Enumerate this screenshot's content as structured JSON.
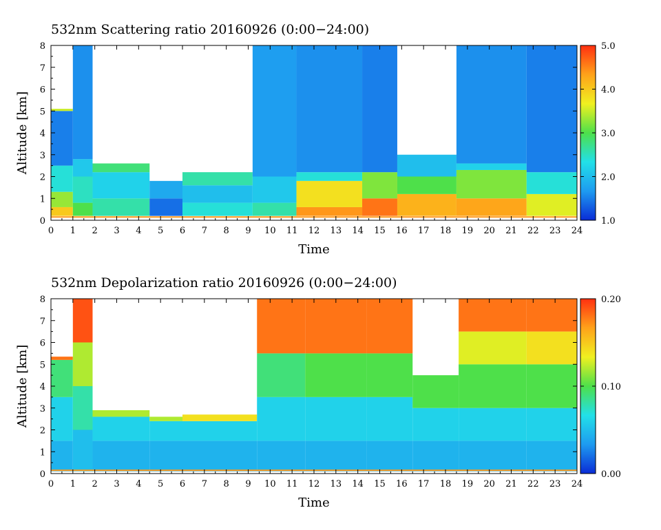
{
  "chart_data": [
    {
      "type": "heatmap",
      "title": "532nm Scattering ratio  20160926 (0:00−24:00)",
      "xlabel": "Time",
      "ylabel": "Altitude [km]",
      "xlim": [
        0,
        24
      ],
      "ylim": [
        0,
        8
      ],
      "x_ticks": [
        0,
        1,
        2,
        3,
        4,
        5,
        6,
        7,
        8,
        9,
        10,
        11,
        12,
        13,
        14,
        15,
        16,
        17,
        18,
        19,
        20,
        21,
        22,
        23,
        24
      ],
      "y_ticks": [
        0,
        1,
        2,
        3,
        4,
        5,
        6,
        7,
        8
      ],
      "colorbar": {
        "range": [
          1.0,
          5.0
        ],
        "ticks": [
          "1.0",
          "2.0",
          "3.0",
          "4.0",
          "5.0"
        ]
      },
      "colormap": [
        "#0a2cd6",
        "#1e9bf0",
        "#22e0e8",
        "#4ee04a",
        "#f0f020",
        "#ffa21a",
        "#ff3010"
      ],
      "no_data_color": "#ffffff",
      "notes_hidden": true,
      "regions": [
        {
          "t": [
            0.0,
            1.0
          ],
          "layers": [
            [
              0.2,
              0.6,
              4.0
            ],
            [
              0.6,
              1.3,
              3.3
            ],
            [
              1.3,
              2.5,
              2.4
            ],
            [
              2.5,
              5.0,
              1.5
            ],
            [
              5.0,
              5.1,
              3.5
            ]
          ],
          "top": 5.1
        },
        {
          "t": [
            1.0,
            1.9
          ],
          "layers": [
            [
              0.2,
              0.8,
              3.0
            ],
            [
              0.8,
              2.0,
              2.5
            ],
            [
              2.0,
              2.8,
              2.1
            ],
            [
              2.8,
              8.0,
              1.6
            ]
          ],
          "top": 8.0
        },
        {
          "t": [
            1.9,
            4.5
          ],
          "layers": [
            [
              0.2,
              1.0,
              2.6
            ],
            [
              1.0,
              2.2,
              2.2
            ],
            [
              2.2,
              2.6,
              2.8
            ]
          ],
          "top": 2.6
        },
        {
          "t": [
            4.5,
            6.0
          ],
          "layers": [
            [
              0.2,
              1.0,
              1.4
            ],
            [
              1.0,
              1.8,
              1.8
            ]
          ],
          "top": 1.8
        },
        {
          "t": [
            6.0,
            9.2
          ],
          "layers": [
            [
              0.2,
              0.8,
              2.4
            ],
            [
              0.8,
              1.6,
              2.0
            ],
            [
              1.6,
              2.2,
              2.6
            ]
          ],
          "top": 2.2
        },
        {
          "t": [
            9.2,
            11.2
          ],
          "layers": [
            [
              0.2,
              0.8,
              2.6
            ],
            [
              0.8,
              2.0,
              2.1
            ],
            [
              2.0,
              8.0,
              1.7
            ]
          ],
          "top": 8.0
        },
        {
          "t": [
            11.2,
            14.2
          ],
          "layers": [
            [
              0.2,
              0.6,
              4.4
            ],
            [
              0.6,
              1.8,
              3.8
            ],
            [
              1.8,
              2.2,
              2.4
            ],
            [
              2.2,
              8.0,
              1.6
            ]
          ],
          "top": 8.0
        },
        {
          "t": [
            14.2,
            15.8
          ],
          "layers": [
            [
              0.2,
              1.0,
              4.6
            ],
            [
              1.0,
              2.2,
              3.2
            ],
            [
              2.2,
              8.0,
              1.5
            ]
          ],
          "top": 8.0
        },
        {
          "t": [
            15.8,
            18.5
          ],
          "layers": [
            [
              0.2,
              1.2,
              4.2
            ],
            [
              1.2,
              2.0,
              3.0
            ],
            [
              2.0,
              3.0,
              2.0
            ]
          ],
          "top": 3.0
        },
        {
          "t": [
            18.5,
            21.7
          ],
          "layers": [
            [
              0.2,
              1.0,
              4.3
            ],
            [
              1.0,
              2.3,
              3.2
            ],
            [
              2.3,
              2.6,
              2.2
            ],
            [
              2.6,
              8.0,
              1.6
            ]
          ],
          "top": 8.0
        },
        {
          "t": [
            21.7,
            24.0
          ],
          "layers": [
            [
              0.2,
              1.2,
              3.6
            ],
            [
              1.2,
              2.2,
              2.4
            ],
            [
              2.2,
              8.0,
              1.5
            ]
          ],
          "top": 8.0
        }
      ]
    },
    {
      "type": "heatmap",
      "title": "532nm Depolarization ratio  20160926 (0:00−24:00)",
      "xlabel": "Time",
      "ylabel": "Altitude [km]",
      "xlim": [
        0,
        24
      ],
      "ylim": [
        0,
        8
      ],
      "x_ticks": [
        0,
        1,
        2,
        3,
        4,
        5,
        6,
        7,
        8,
        9,
        10,
        11,
        12,
        13,
        14,
        15,
        16,
        17,
        18,
        19,
        20,
        21,
        22,
        23,
        24
      ],
      "y_ticks": [
        0,
        1,
        2,
        3,
        4,
        5,
        6,
        7,
        8
      ],
      "colorbar": {
        "range": [
          0.0,
          0.2
        ],
        "ticks": [
          "0.00",
          "0.10",
          "0.20"
        ]
      },
      "colormap": [
        "#0a2cd6",
        "#1e9bf0",
        "#22e0e8",
        "#4ee04a",
        "#f0f020",
        "#ffa21a",
        "#ff3010"
      ],
      "no_data_color": "#ffffff",
      "regions": [
        {
          "t": [
            0.0,
            1.0
          ],
          "layers": [
            [
              0.1,
              1.5,
              0.045
            ],
            [
              1.5,
              3.5,
              0.06
            ],
            [
              3.5,
              5.2,
              0.09
            ],
            [
              5.2,
              5.35,
              0.18
            ]
          ],
          "top": 5.35
        },
        {
          "t": [
            1.0,
            1.9
          ],
          "layers": [
            [
              0.1,
              2.0,
              0.05
            ],
            [
              2.0,
              4.0,
              0.08
            ],
            [
              4.0,
              6.0,
              0.12
            ],
            [
              6.0,
              8.0,
              0.19
            ]
          ],
          "top": 8.0
        },
        {
          "t": [
            1.9,
            4.5
          ],
          "layers": [
            [
              0.1,
              1.5,
              0.045
            ],
            [
              1.5,
              2.6,
              0.06
            ],
            [
              2.6,
              2.9,
              0.12
            ]
          ],
          "top": 2.9
        },
        {
          "t": [
            4.5,
            6.0
          ],
          "layers": [
            [
              0.1,
              1.5,
              0.045
            ],
            [
              1.5,
              2.4,
              0.06
            ],
            [
              2.4,
              2.6,
              0.12
            ]
          ],
          "top": 2.6
        },
        {
          "t": [
            6.0,
            9.4
          ],
          "layers": [
            [
              0.1,
              1.5,
              0.045
            ],
            [
              1.5,
              2.4,
              0.06
            ],
            [
              2.4,
              2.7,
              0.14
            ]
          ],
          "top": 2.7
        },
        {
          "t": [
            9.4,
            11.6
          ],
          "layers": [
            [
              0.1,
              1.5,
              0.045
            ],
            [
              1.5,
              3.5,
              0.06
            ],
            [
              3.5,
              5.5,
              0.09
            ],
            [
              5.5,
              8.0,
              0.18
            ]
          ],
          "top": 8.0
        },
        {
          "t": [
            11.6,
            14.4
          ],
          "layers": [
            [
              0.1,
              1.5,
              0.045
            ],
            [
              1.5,
              3.5,
              0.06
            ],
            [
              3.5,
              5.5,
              0.1
            ],
            [
              5.5,
              8.0,
              0.18
            ]
          ],
          "top": 8.0
        },
        {
          "t": [
            14.4,
            16.5
          ],
          "layers": [
            [
              0.1,
              1.5,
              0.045
            ],
            [
              1.5,
              3.5,
              0.06
            ],
            [
              3.5,
              5.5,
              0.1
            ],
            [
              5.5,
              8.0,
              0.18
            ]
          ],
          "top": 8.0
        },
        {
          "t": [
            16.5,
            18.6
          ],
          "layers": [
            [
              0.1,
              1.5,
              0.045
            ],
            [
              1.5,
              3.0,
              0.06
            ],
            [
              3.0,
              4.5,
              0.1
            ]
          ],
          "top": 4.5
        },
        {
          "t": [
            18.6,
            21.7
          ],
          "layers": [
            [
              0.1,
              1.5,
              0.045
            ],
            [
              1.5,
              3.0,
              0.06
            ],
            [
              3.0,
              5.0,
              0.1
            ],
            [
              5.0,
              6.5,
              0.13
            ],
            [
              6.5,
              8.0,
              0.18
            ]
          ],
          "top": 8.0
        },
        {
          "t": [
            21.7,
            24.0
          ],
          "layers": [
            [
              0.1,
              1.5,
              0.045
            ],
            [
              1.5,
              3.0,
              0.06
            ],
            [
              3.0,
              5.0,
              0.1
            ],
            [
              5.0,
              6.5,
              0.14
            ],
            [
              6.5,
              8.0,
              0.18
            ]
          ],
          "top": 8.0
        }
      ]
    }
  ]
}
